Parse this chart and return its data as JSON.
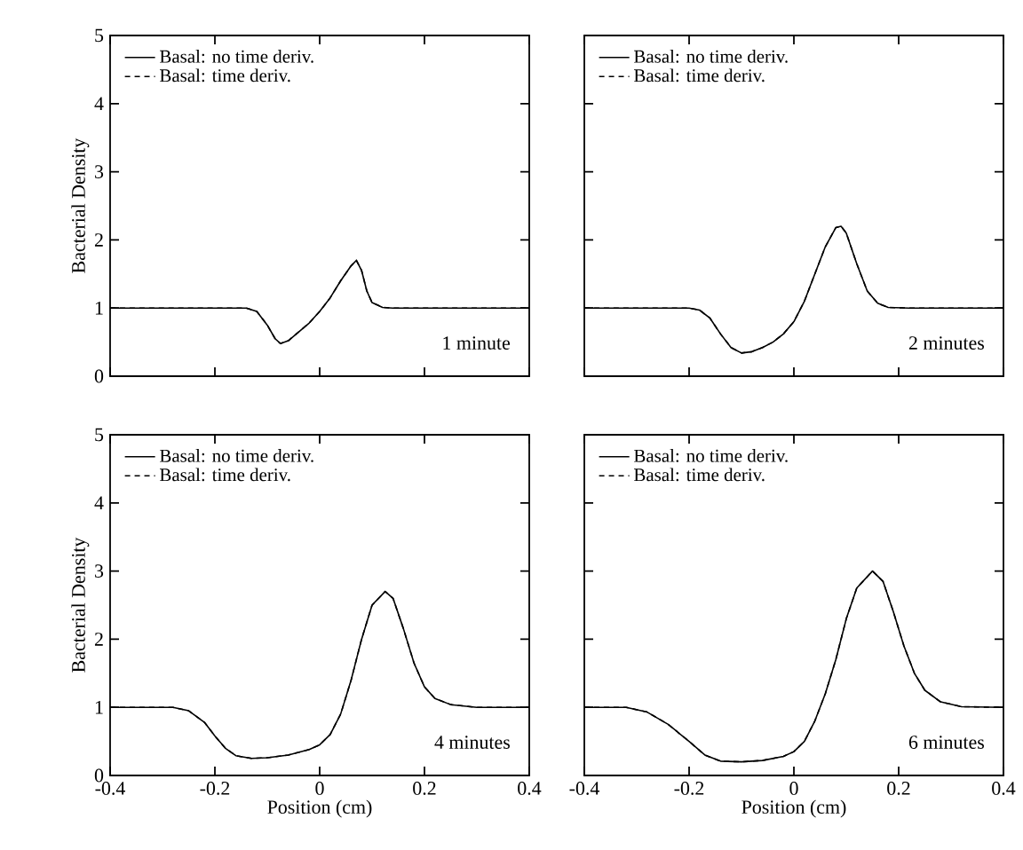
{
  "chart_data": [
    {
      "type": "line",
      "ylabel": "Bacterial Density",
      "annotations": [
        "1 minute"
      ],
      "xlim": [
        -0.4,
        0.4
      ],
      "ylim": [
        0,
        5
      ],
      "xticks": [
        -0.4,
        -0.2,
        0,
        0.2,
        0.4
      ],
      "yticks": [
        0,
        1,
        2,
        3,
        4,
        5
      ],
      "tick_labels": "y",
      "legend": "top left",
      "grid": false,
      "marker": "none",
      "x": [
        -0.4,
        -0.14,
        -0.12,
        -0.1,
        -0.085,
        -0.075,
        -0.06,
        -0.04,
        -0.02,
        0,
        0.02,
        0.04,
        0.06,
        0.07,
        0.08,
        0.09,
        0.1,
        0.12,
        0.14,
        0.4
      ],
      "series": [
        {
          "name": "Basal: no time deriv.",
          "color": "#000000",
          "line_style": "solid",
          "values": [
            1,
            1,
            0.95,
            0.75,
            0.55,
            0.48,
            0.52,
            0.65,
            0.78,
            0.95,
            1.15,
            1.4,
            1.62,
            1.7,
            1.55,
            1.25,
            1.08,
            1.01,
            1,
            1
          ]
        },
        {
          "name": "Basal: time deriv.",
          "color": "#000000",
          "line_style": "dashed",
          "values": [
            1,
            1,
            0.95,
            0.75,
            0.55,
            0.48,
            0.52,
            0.65,
            0.78,
            0.95,
            1.15,
            1.4,
            1.62,
            1.7,
            1.55,
            1.25,
            1.08,
            1.01,
            1,
            1
          ]
        }
      ]
    },
    {
      "type": "line",
      "annotations": [
        "2 minutes"
      ],
      "xlim": [
        -0.4,
        0.4
      ],
      "ylim": [
        0,
        5
      ],
      "xticks": [
        -0.4,
        -0.2,
        0,
        0.2,
        0.4
      ],
      "yticks": [
        0,
        1,
        2,
        3,
        4,
        5
      ],
      "tick_labels": false,
      "legend": "top left",
      "grid": false,
      "marker": "none",
      "x": [
        -0.4,
        -0.2,
        -0.18,
        -0.16,
        -0.14,
        -0.12,
        -0.1,
        -0.08,
        -0.06,
        -0.04,
        -0.02,
        0,
        0.02,
        0.04,
        0.06,
        0.08,
        0.09,
        0.1,
        0.12,
        0.14,
        0.16,
        0.18,
        0.22,
        0.4
      ],
      "series": [
        {
          "name": "Basal: no time deriv.",
          "color": "#000000",
          "line_style": "solid",
          "values": [
            1,
            1,
            0.97,
            0.85,
            0.62,
            0.42,
            0.34,
            0.36,
            0.42,
            0.5,
            0.62,
            0.8,
            1.1,
            1.5,
            1.9,
            2.18,
            2.2,
            2.1,
            1.65,
            1.25,
            1.07,
            1.01,
            1,
            1
          ]
        },
        {
          "name": "Basal: time deriv.",
          "color": "#000000",
          "line_style": "dashed",
          "values": [
            1,
            1,
            0.97,
            0.85,
            0.62,
            0.42,
            0.34,
            0.36,
            0.42,
            0.5,
            0.62,
            0.8,
            1.1,
            1.5,
            1.9,
            2.18,
            2.2,
            2.1,
            1.65,
            1.25,
            1.07,
            1.01,
            1,
            1
          ]
        }
      ]
    },
    {
      "type": "line",
      "xlabel": "Position (cm)",
      "ylabel": "Bacterial Density",
      "annotations": [
        "4 minutes"
      ],
      "xlim": [
        -0.4,
        0.4
      ],
      "ylim": [
        0,
        5
      ],
      "xticks": [
        -0.4,
        -0.2,
        0,
        0.2,
        0.4
      ],
      "yticks": [
        0,
        1,
        2,
        3,
        4,
        5
      ],
      "legend": "top left",
      "grid": false,
      "marker": "none",
      "x": [
        -0.4,
        -0.28,
        -0.25,
        -0.22,
        -0.2,
        -0.18,
        -0.16,
        -0.13,
        -0.1,
        -0.06,
        -0.02,
        0,
        0.02,
        0.04,
        0.06,
        0.08,
        0.1,
        0.125,
        0.14,
        0.16,
        0.18,
        0.2,
        0.22,
        0.25,
        0.3,
        0.4
      ],
      "series": [
        {
          "name": "Basal: no time deriv.",
          "color": "#000000",
          "line_style": "solid",
          "values": [
            1,
            1,
            0.95,
            0.78,
            0.58,
            0.4,
            0.29,
            0.25,
            0.26,
            0.3,
            0.38,
            0.45,
            0.6,
            0.9,
            1.4,
            2.0,
            2.5,
            2.7,
            2.6,
            2.15,
            1.65,
            1.3,
            1.13,
            1.04,
            1,
            1
          ]
        },
        {
          "name": "Basal: time deriv.",
          "color": "#000000",
          "line_style": "dashed",
          "values": [
            1,
            1,
            0.95,
            0.78,
            0.58,
            0.4,
            0.29,
            0.25,
            0.26,
            0.3,
            0.38,
            0.45,
            0.6,
            0.9,
            1.4,
            2.0,
            2.5,
            2.7,
            2.6,
            2.15,
            1.65,
            1.3,
            1.13,
            1.04,
            1,
            1
          ]
        }
      ]
    },
    {
      "type": "line",
      "xlabel": "Position (cm)",
      "annotations": [
        "6 minutes"
      ],
      "xlim": [
        -0.4,
        0.4
      ],
      "ylim": [
        0,
        5
      ],
      "xticks": [
        -0.4,
        -0.2,
        0,
        0.2,
        0.4
      ],
      "yticks": [
        0,
        1,
        2,
        3,
        4,
        5
      ],
      "tick_labels": "x",
      "legend": "top left",
      "grid": false,
      "marker": "none",
      "x": [
        -0.4,
        -0.32,
        -0.28,
        -0.24,
        -0.2,
        -0.17,
        -0.14,
        -0.1,
        -0.06,
        -0.02,
        0,
        0.02,
        0.04,
        0.06,
        0.08,
        0.1,
        0.12,
        0.15,
        0.17,
        0.19,
        0.21,
        0.23,
        0.25,
        0.28,
        0.32,
        0.4
      ],
      "series": [
        {
          "name": "Basal: no time deriv.",
          "color": "#000000",
          "line_style": "solid",
          "values": [
            1,
            1,
            0.93,
            0.75,
            0.5,
            0.3,
            0.21,
            0.2,
            0.22,
            0.28,
            0.35,
            0.5,
            0.8,
            1.2,
            1.7,
            2.3,
            2.75,
            3.0,
            2.85,
            2.4,
            1.9,
            1.5,
            1.25,
            1.08,
            1.01,
            1
          ]
        },
        {
          "name": "Basal: time deriv.",
          "color": "#000000",
          "line_style": "dashed",
          "values": [
            1,
            1,
            0.93,
            0.75,
            0.5,
            0.3,
            0.21,
            0.2,
            0.22,
            0.28,
            0.35,
            0.5,
            0.8,
            1.2,
            1.7,
            2.3,
            2.75,
            3.0,
            2.85,
            2.4,
            1.9,
            1.5,
            1.25,
            1.08,
            1.01,
            1
          ]
        }
      ]
    }
  ]
}
